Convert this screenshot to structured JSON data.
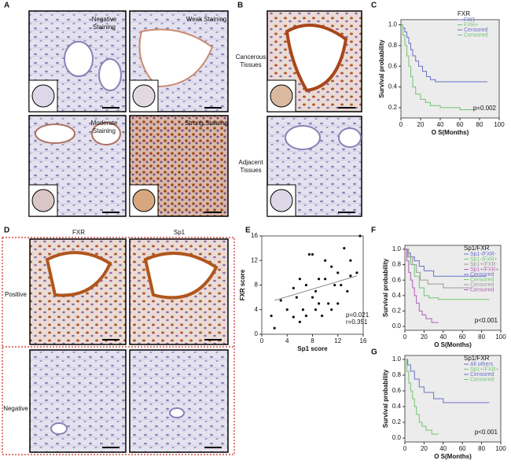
{
  "panel_labels": [
    "A",
    "B",
    "C",
    "D",
    "E",
    "F",
    "G"
  ],
  "panel_a": {
    "labels": [
      "Negative Staining",
      "Weak Staining",
      "Moderate Staining",
      "Strong Staining"
    ]
  },
  "panel_b": {
    "labels": [
      "Cancerous Tissues",
      "Adjacent Tissues"
    ]
  },
  "panel_d": {
    "columns": [
      "FXR",
      "Sp1"
    ],
    "rows": [
      "Positive",
      "Negative"
    ]
  },
  "chart_data": [
    {
      "type": "line",
      "step": true,
      "background": "#ececec",
      "legend_title": "FXR",
      "xlabel": "O S(Months)",
      "ylabel": "Survival probability",
      "annotation": "p=0.002",
      "xlim": [
        0,
        100
      ],
      "ylim": [
        0.1,
        1.05
      ],
      "xticks": [
        0,
        20,
        40,
        60,
        80,
        100
      ],
      "yticks": [
        0.2,
        0.4,
        0.6,
        0.8,
        {
          "value": 1,
          "label": "1.0"
        }
      ],
      "series": [
        {
          "name": "FXR-",
          "color": "#6a6fc8",
          "x": [
            0,
            2,
            4,
            6,
            8,
            10,
            12,
            15,
            18,
            22,
            26,
            30,
            35,
            88
          ],
          "values": [
            1,
            0.97,
            0.93,
            0.88,
            0.82,
            0.76,
            0.7,
            0.65,
            0.6,
            0.55,
            0.5,
            0.47,
            0.45,
            0.45
          ]
        },
        {
          "name": "FXR+",
          "color": "#72c472",
          "x": [
            0,
            2,
            4,
            6,
            8,
            10,
            12,
            15,
            20,
            25,
            30,
            40,
            60,
            75
          ],
          "values": [
            1,
            0.9,
            0.8,
            0.7,
            0.6,
            0.5,
            0.4,
            0.33,
            0.28,
            0.25,
            0.22,
            0.2,
            0.18,
            0.18
          ]
        }
      ],
      "legend_extra": [
        {
          "name": "Censored",
          "color": "#6a6fc8"
        },
        {
          "name": "Censored",
          "color": "#72c472"
        }
      ]
    },
    {
      "type": "scatter",
      "xlabel": "Sp1 score",
      "ylabel": "FXR score",
      "annotation": "p=0.021",
      "annotation2": "r=0.351",
      "color": "#111111",
      "xlim": [
        0,
        16
      ],
      "ylim": [
        0,
        16
      ],
      "xticks": [
        0,
        4,
        8,
        12,
        16
      ],
      "yticks": [
        0,
        4,
        8,
        12,
        16
      ],
      "x": [
        1.5,
        2,
        3,
        4,
        5,
        5,
        5.5,
        6,
        6,
        6.5,
        7,
        7,
        7.5,
        8,
        8,
        8.5,
        8.5,
        9,
        9,
        9.5,
        10,
        10,
        10.5,
        11,
        11,
        11.5,
        12,
        12,
        12.5,
        13,
        13.5,
        14,
        14,
        15,
        15.5
      ],
      "values": [
        3,
        1,
        5.5,
        4,
        2.8,
        7.5,
        6,
        2,
        9,
        4,
        8,
        3,
        13,
        13,
        6,
        4,
        7,
        9,
        5,
        3,
        12,
        9,
        5,
        11,
        4,
        8,
        10,
        5,
        8,
        14,
        7,
        12,
        9.5,
        10,
        16
      ],
      "trendline": {
        "color": "#888888",
        "x": [
          2,
          15
        ],
        "values": [
          5.5,
          9.5
        ]
      }
    },
    {
      "type": "line",
      "step": true,
      "background": "#ececec",
      "legend_title": "Sp1/FXR",
      "xlabel": "O S(Months)",
      "ylabel": "Survival probability",
      "annotation": "p<0.001",
      "xlim": [
        0,
        100
      ],
      "ylim": [
        -0.05,
        1.05
      ],
      "xticks": [
        0,
        20,
        40,
        60,
        80,
        100
      ],
      "yticks": [
        {
          "value": 0,
          "label": "0.0"
        },
        0.2,
        0.4,
        0.6,
        0.8,
        {
          "value": 1,
          "label": "1.0"
        }
      ],
      "series": [
        {
          "name": "Sp1-/FXR-",
          "color": "#6a6fc8",
          "x": [
            0,
            3,
            6,
            10,
            15,
            20,
            30,
            50,
            85
          ],
          "values": [
            1,
            0.95,
            0.9,
            0.85,
            0.78,
            0.72,
            0.65,
            0.65,
            0.65
          ]
        },
        {
          "name": "Sp1-/FXR+",
          "color": "#72c472",
          "x": [
            0,
            3,
            6,
            10,
            15,
            20,
            25,
            35,
            88
          ],
          "values": [
            1,
            0.9,
            0.8,
            0.65,
            0.5,
            0.4,
            0.37,
            0.35,
            0.35
          ]
        },
        {
          "name": "Sp1+/FXR-",
          "color": "#999999",
          "x": [
            0,
            4,
            8,
            12,
            16,
            24,
            40,
            70
          ],
          "values": [
            1,
            0.9,
            0.8,
            0.7,
            0.6,
            0.55,
            0.5,
            0.5
          ]
        },
        {
          "name": "Sp1+/FXR+",
          "color": "#b060b0",
          "x": [
            0,
            2,
            4,
            6,
            8,
            10,
            12,
            15,
            18,
            22,
            28,
            35
          ],
          "values": [
            1,
            0.85,
            0.7,
            0.6,
            0.5,
            0.4,
            0.3,
            0.2,
            0.15,
            0.1,
            0.05,
            0.05
          ]
        }
      ],
      "legend_extra": [
        {
          "name": "Censored",
          "color": "#6a6fc8"
        },
        {
          "name": "Censored",
          "color": "#72c472"
        },
        {
          "name": "Censored",
          "color": "#999999"
        },
        {
          "name": "Censored",
          "color": "#b060b0"
        }
      ]
    },
    {
      "type": "line",
      "step": true,
      "background": "#ececec",
      "legend_title": "Sp1/FXR",
      "xlabel": "O S(Months)",
      "ylabel": "Survival probability",
      "annotation": "p<0.001",
      "xlim": [
        0,
        100
      ],
      "ylim": [
        -0.05,
        1.05
      ],
      "xticks": [
        0,
        20,
        40,
        60,
        80,
        100
      ],
      "yticks": [
        {
          "value": 0,
          "label": "0.0"
        },
        0.2,
        0.4,
        0.6,
        0.8,
        {
          "value": 1,
          "label": "1.0"
        }
      ],
      "series": [
        {
          "name": "All others",
          "color": "#6a6fc8",
          "x": [
            0,
            3,
            6,
            10,
            15,
            20,
            30,
            40,
            88
          ],
          "values": [
            1,
            0.93,
            0.85,
            0.75,
            0.65,
            0.58,
            0.5,
            0.45,
            0.45
          ]
        },
        {
          "name": "Sp1+/FXR+",
          "color": "#72c472",
          "x": [
            0,
            2,
            4,
            6,
            8,
            10,
            12,
            15,
            18,
            22,
            28,
            35
          ],
          "values": [
            1,
            0.85,
            0.7,
            0.6,
            0.5,
            0.4,
            0.3,
            0.2,
            0.15,
            0.1,
            0.05,
            0.05
          ]
        }
      ],
      "legend_extra": [
        {
          "name": "Censored",
          "color": "#6a6fc8"
        },
        {
          "name": "Censored",
          "color": "#72c472"
        }
      ]
    }
  ]
}
